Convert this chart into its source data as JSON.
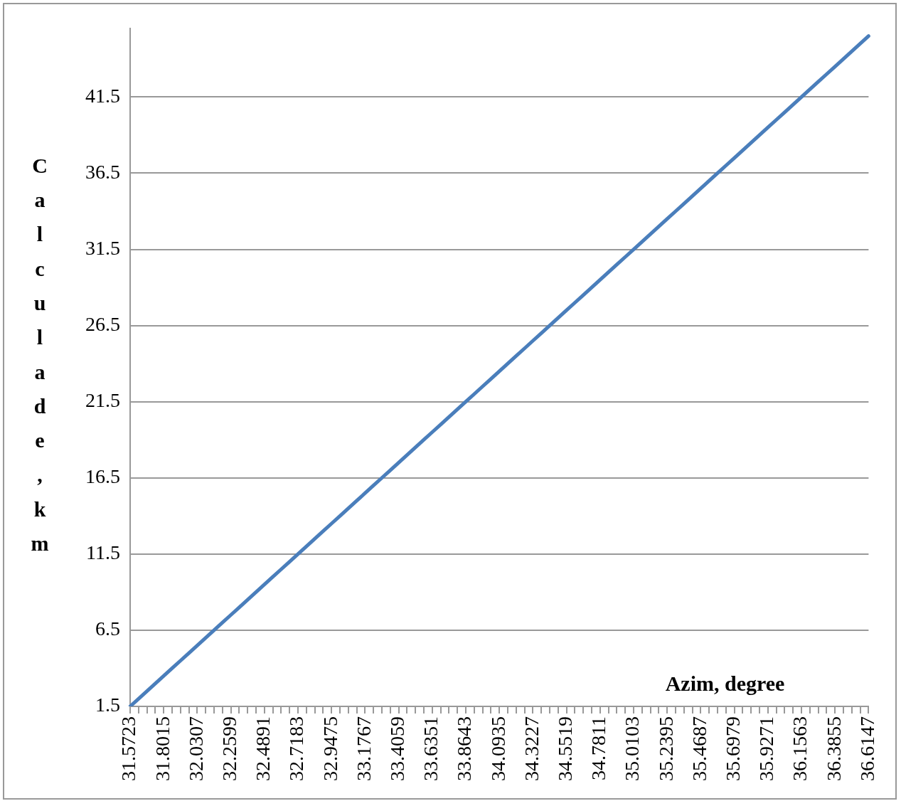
{
  "chart_data": {
    "type": "line",
    "xlabel": "Azim, degree",
    "ylabel": "Calculade, km",
    "categories": [
      "31.5723",
      null,
      null,
      null,
      "31.8015",
      null,
      null,
      null,
      "32.0307",
      null,
      null,
      null,
      "32.2599",
      null,
      null,
      null,
      "32.4891",
      null,
      null,
      null,
      "32.7183",
      null,
      null,
      null,
      "32.9475",
      null,
      null,
      null,
      "33.1767",
      null,
      null,
      null,
      "33.4059",
      null,
      null,
      null,
      "33.6351",
      null,
      null,
      null,
      "33.8643",
      null,
      null,
      null,
      "34.0935",
      null,
      null,
      null,
      "34.3227",
      null,
      null,
      null,
      "34.5519",
      null,
      null,
      null,
      "34.7811",
      null,
      null,
      null,
      "35.0103",
      null,
      null,
      null,
      "35.2395",
      null,
      null,
      null,
      "35.4687",
      null,
      null,
      null,
      "35.6979",
      null,
      null,
      null,
      "35.9271",
      null,
      null,
      null,
      "36.1563",
      null,
      null,
      null,
      "36.3855",
      null,
      null,
      null,
      "36.6147"
    ],
    "series": [
      {
        "color": "#4a7ebb",
        "values": [
          1.5,
          2,
          2.5,
          3,
          3.5,
          4,
          4.5,
          5,
          5.5,
          6,
          6.5,
          7,
          7.5,
          8,
          8.5,
          9,
          9.5,
          10,
          10.5,
          11,
          11.5,
          12,
          12.5,
          13,
          13.5,
          14,
          14.5,
          15,
          15.5,
          16,
          16.5,
          17,
          17.5,
          18,
          18.5,
          19,
          19.5,
          20,
          20.5,
          21,
          21.5,
          22,
          22.5,
          23,
          23.5,
          24,
          24.5,
          25,
          25.5,
          26,
          26.5,
          27,
          27.5,
          28,
          28.5,
          29,
          29.5,
          30,
          30.5,
          31,
          31.5,
          32,
          32.5,
          33,
          33.5,
          34,
          34.5,
          35,
          35.5,
          36,
          36.5,
          37,
          37.5,
          38,
          38.5,
          39,
          39.5,
          40,
          40.5,
          41,
          41.5,
          42,
          42.5,
          43,
          43.5,
          44,
          44.5,
          45,
          45.5
        ]
      }
    ],
    "ylim": [
      1.5,
      46
    ],
    "yticks": [
      1.5,
      6.5,
      11.5,
      16.5,
      21.5,
      26.5,
      31.5,
      36.5,
      41.5
    ],
    "grid": "y",
    "legend": false,
    "marker": "none",
    "line_style": "solid"
  }
}
